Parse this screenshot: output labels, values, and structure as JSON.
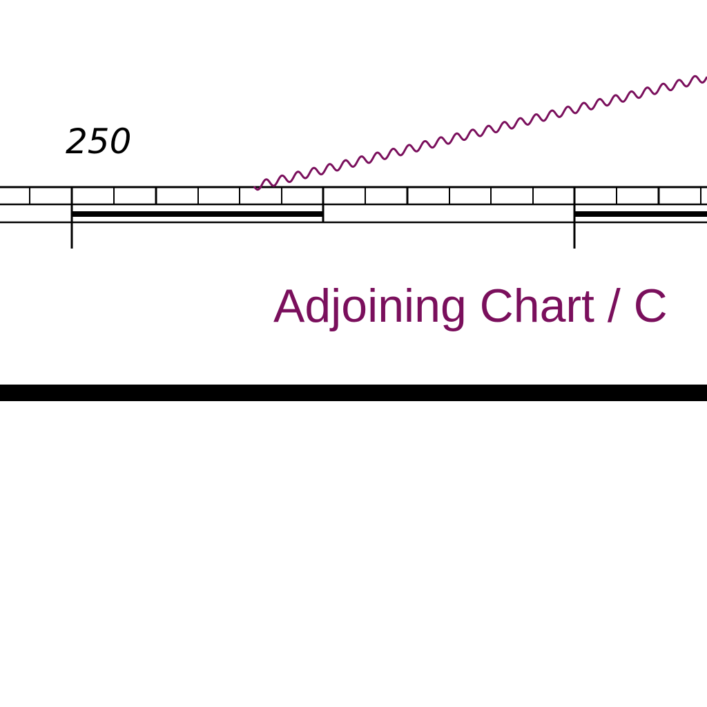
{
  "map": {
    "scale_label": "250",
    "adjoining_label": "Adjoining Chart / C",
    "colors": {
      "ink": "#000000",
      "magenta": "#7a0f5c",
      "background": "#ffffff"
    },
    "elements": [
      "border-scale-bar",
      "boundary-wavy-line",
      "adjoining-chart-label",
      "neatline"
    ]
  }
}
